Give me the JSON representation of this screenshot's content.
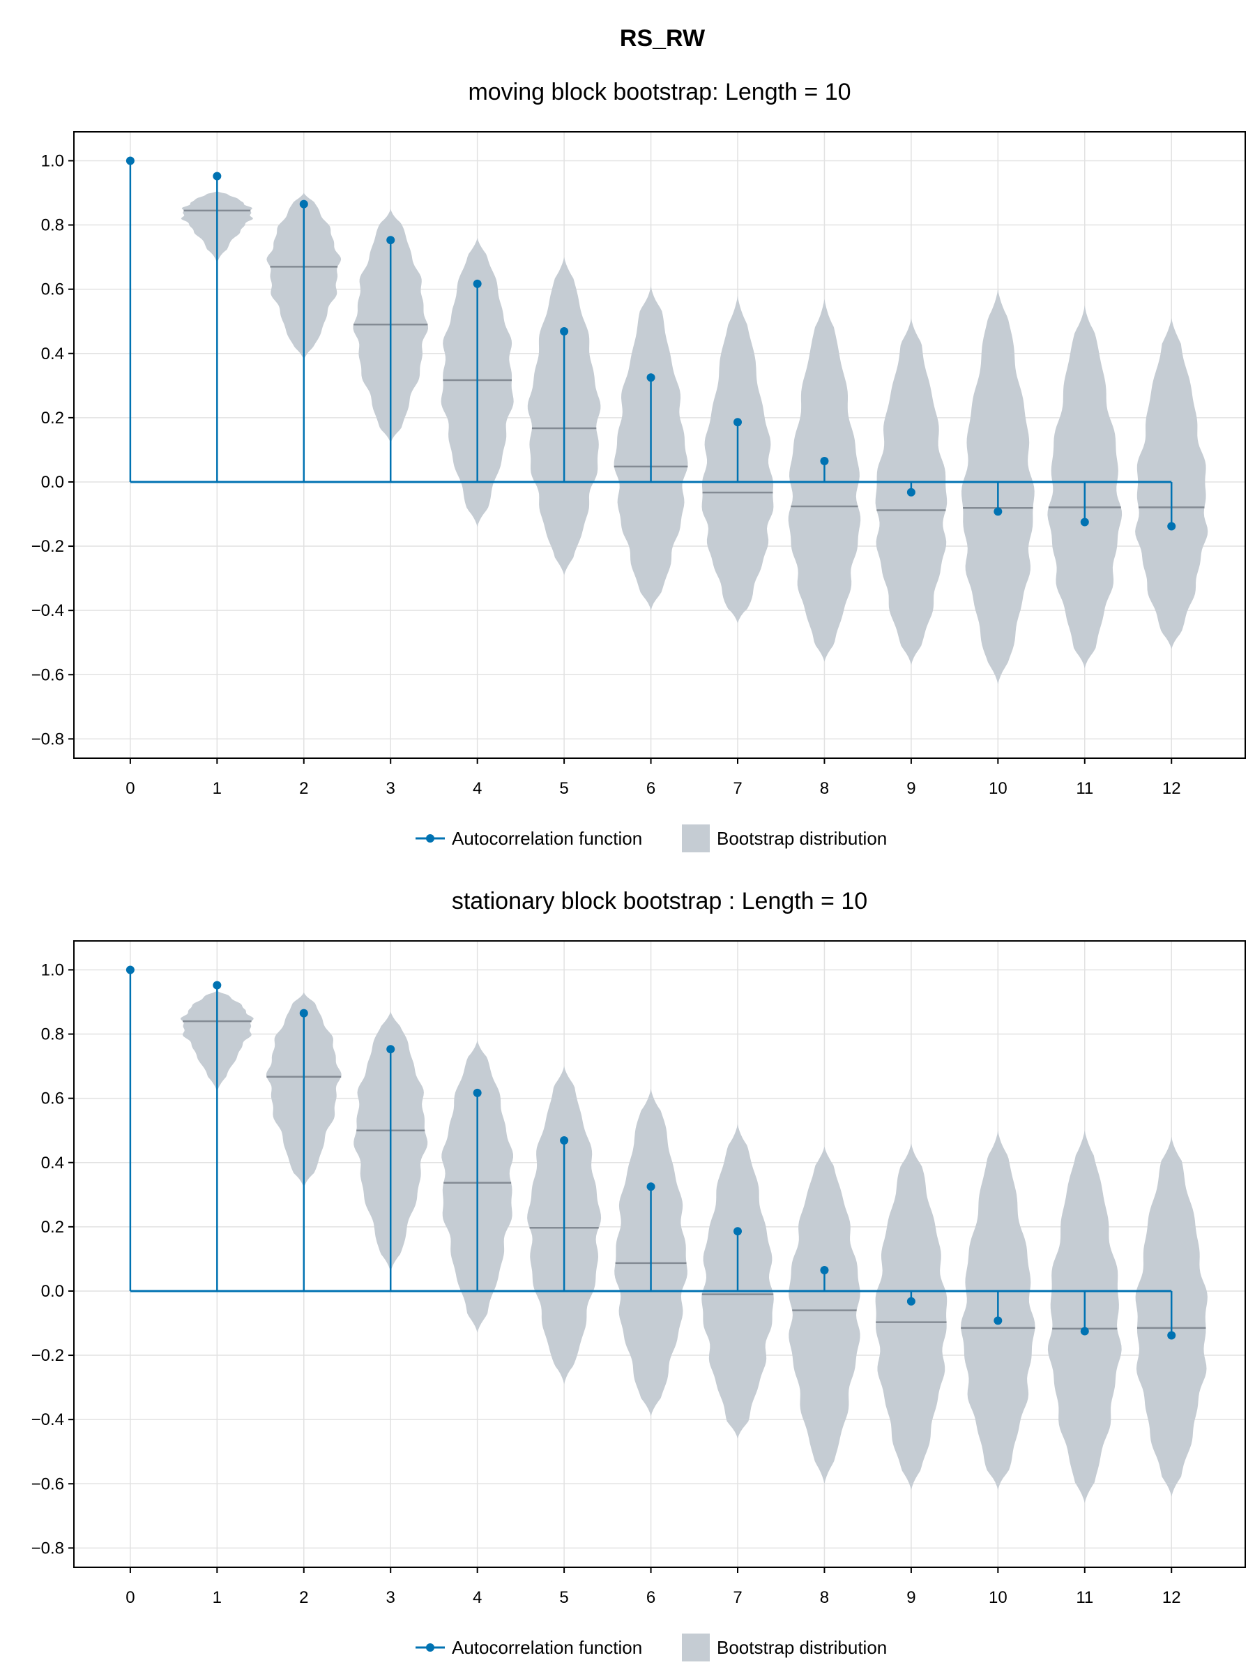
{
  "figure_title": "RS_RW",
  "colors": {
    "acf": "#0072b2",
    "violin": "#c5ccd3",
    "median": "#848b94",
    "grid": "#e2e2e2",
    "frame": "#000000"
  },
  "legend": {
    "acf_label": "Autocorrelation function",
    "bootstrap_label": "Bootstrap distribution"
  },
  "chart_data": [
    {
      "type": "violin",
      "title": "moving block bootstrap: Length = 10",
      "xlabel": "",
      "ylabel": "",
      "x_ticks": [
        0,
        1,
        2,
        3,
        4,
        5,
        6,
        7,
        8,
        9,
        10,
        11,
        12
      ],
      "y_ticks": [
        -0.8,
        -0.6,
        -0.4,
        -0.2,
        0.0,
        0.2,
        0.4,
        0.6,
        0.8,
        1.0
      ],
      "y_tick_labels": [
        "−0.8",
        "−0.6",
        "−0.4",
        "−0.2",
        "0.0",
        "0.2",
        "0.4",
        "0.6",
        "0.8",
        "1.0"
      ],
      "xlim": [
        -0.65,
        12.85
      ],
      "ylim": [
        -0.86,
        1.09
      ],
      "grid": true,
      "legend_position": "bottom-center",
      "acf": {
        "lags": [
          0,
          1,
          2,
          3,
          4,
          5,
          6,
          7,
          8,
          9,
          10,
          11,
          12
        ],
        "values": [
          1.0,
          0.952,
          0.865,
          0.753,
          0.617,
          0.469,
          0.325,
          0.186,
          0.065,
          -0.032,
          -0.092,
          -0.125,
          -0.138
        ]
      },
      "bootstrap": {
        "lags": [
          1,
          2,
          3,
          4,
          5,
          6,
          7,
          8,
          9,
          10,
          11,
          12
        ],
        "median": [
          0.845,
          0.67,
          0.49,
          0.317,
          0.167,
          0.048,
          -0.033,
          -0.076,
          -0.088,
          -0.081,
          -0.079,
          -0.079
        ],
        "min": [
          0.68,
          0.38,
          0.12,
          -0.14,
          -0.29,
          -0.4,
          -0.44,
          -0.56,
          -0.57,
          -0.63,
          -0.58,
          -0.52
        ],
        "max": [
          0.905,
          0.9,
          0.85,
          0.76,
          0.7,
          0.61,
          0.58,
          0.57,
          0.51,
          0.6,
          0.55,
          0.51
        ],
        "max_halfwidth": [
          0.4,
          0.4,
          0.4,
          0.4,
          0.4,
          0.4,
          0.4,
          0.4,
          0.4,
          0.4,
          0.4,
          0.4
        ]
      }
    },
    {
      "type": "violin",
      "title": "stationary block bootstrap : Length = 10",
      "xlabel": "",
      "ylabel": "",
      "x_ticks": [
        0,
        1,
        2,
        3,
        4,
        5,
        6,
        7,
        8,
        9,
        10,
        11,
        12
      ],
      "y_ticks": [
        -0.8,
        -0.6,
        -0.4,
        -0.2,
        0.0,
        0.2,
        0.4,
        0.6,
        0.8,
        1.0
      ],
      "y_tick_labels": [
        "−0.8",
        "−0.6",
        "−0.4",
        "−0.2",
        "0.0",
        "0.2",
        "0.4",
        "0.6",
        "0.8",
        "1.0"
      ],
      "xlim": [
        -0.65,
        12.85
      ],
      "ylim": [
        -0.86,
        1.09
      ],
      "grid": true,
      "legend_position": "bottom-center",
      "acf": {
        "lags": [
          0,
          1,
          2,
          3,
          4,
          5,
          6,
          7,
          8,
          9,
          10,
          11,
          12
        ],
        "values": [
          1.0,
          0.952,
          0.865,
          0.753,
          0.617,
          0.469,
          0.325,
          0.186,
          0.065,
          -0.032,
          -0.092,
          -0.125,
          -0.138
        ]
      },
      "bootstrap": {
        "lags": [
          1,
          2,
          3,
          4,
          5,
          6,
          7,
          8,
          9,
          10,
          11,
          12
        ],
        "median": [
          0.84,
          0.667,
          0.5,
          0.337,
          0.197,
          0.087,
          -0.01,
          -0.06,
          -0.097,
          -0.115,
          -0.117,
          -0.115
        ],
        "min": [
          0.62,
          0.32,
          0.06,
          -0.13,
          -0.29,
          -0.39,
          -0.46,
          -0.6,
          -0.62,
          -0.62,
          -0.66,
          -0.64
        ],
        "max": [
          0.935,
          0.93,
          0.87,
          0.78,
          0.7,
          0.63,
          0.52,
          0.45,
          0.46,
          0.5,
          0.5,
          0.48
        ],
        "max_halfwidth": [
          0.4,
          0.4,
          0.4,
          0.4,
          0.4,
          0.4,
          0.4,
          0.4,
          0.4,
          0.4,
          0.4,
          0.4
        ]
      }
    }
  ]
}
